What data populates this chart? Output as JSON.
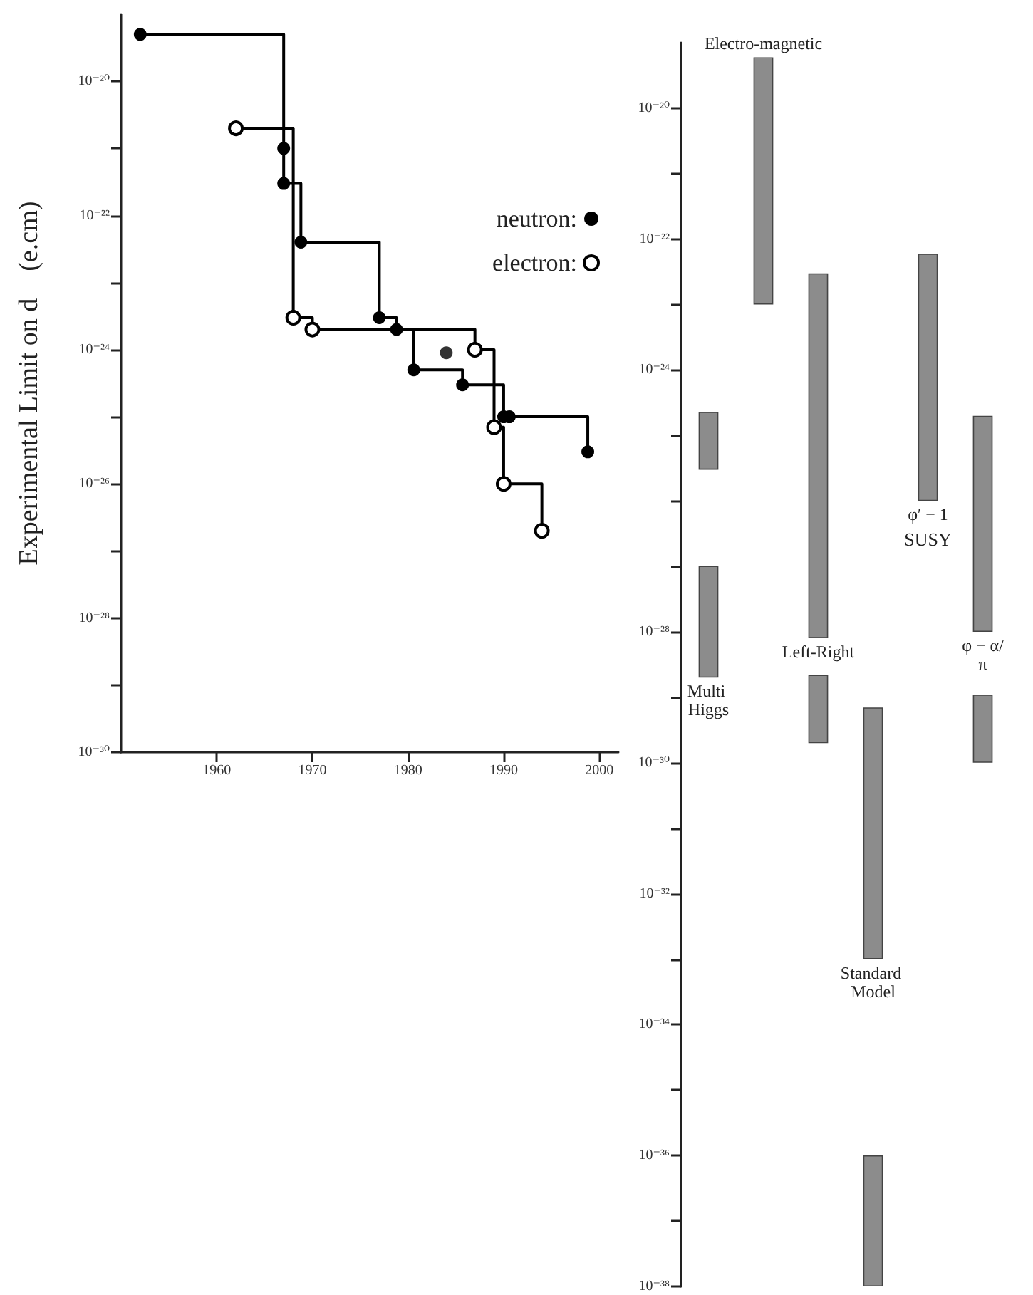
{
  "chart_data": [
    {
      "type": "step",
      "ylabel": "Experimental Limit on d    (e.cm)",
      "series": [
        {
          "name": "neutron:",
          "color": "#000000",
          "x": [
            1952,
            1967,
            1967,
            1968.8,
            1977,
            1978.8,
            1980.6,
            1985.7,
            1990,
            1990.6,
            1998.8
          ],
          "values": [
            5e-20,
            1e-21,
            3e-22,
            4e-23,
            3e-24,
            2e-24,
            5e-25,
            3e-25,
            1e-25,
            1e-25,
            3e-26
          ]
        },
        {
          "name": "electron:",
          "color": "#000000",
          "x": [
            1962,
            1968,
            1970,
            1987,
            1989,
            1990,
            1994
          ],
          "values": [
            2e-21,
            3e-24,
            2e-24,
            1e-24,
            7e-26,
            1e-26,
            2e-27
          ]
        },
        {
          "type": "scatter",
          "color": "#000000",
          "x": [
            1984
          ],
          "values": [
            9e-25
          ]
        }
      ],
      "log": true,
      "xlim": [
        1950,
        2002
      ],
      "xticks": [
        1960,
        1970,
        1980,
        1990,
        2000
      ],
      "ylim": [
        1e-30,
        1e-19
      ],
      "yticks": [
        {
          "value": 1e-20,
          "label": "10⁻²⁰"
        },
        {
          "value": 1e-21,
          "label": null
        },
        {
          "value": 1e-22,
          "label": "10⁻²²"
        },
        {
          "value": 1e-23,
          "label": null
        },
        {
          "value": 1e-24,
          "label": "10⁻²⁴"
        },
        {
          "value": 1e-25,
          "label": null
        },
        {
          "value": 1e-26,
          "label": "10⁻²⁶"
        },
        {
          "value": 1e-27,
          "label": null
        },
        {
          "value": 1e-28,
          "label": "10⁻²⁸"
        },
        {
          "value": 1e-29,
          "label": null
        },
        {
          "value": 1e-30,
          "label": "10⁻³⁰"
        }
      ],
      "grid": false,
      "legend": "right",
      "marker": "circle"
    },
    {
      "type": "bar",
      "categories": [
        "Multi Higgs",
        "Electro-magnetic",
        "Left-Right",
        "Standard Model",
        "φ′ − 1",
        "φ − α/π"
      ],
      "series": [
        {
          "color": "#8c8c8c",
          "base": [
            2e-29,
            1e-23,
            8e-29,
            1e-33,
            1e-26,
            1e-28
          ],
          "values": [
            1e-27,
            6e-20,
            3e-23,
            7e-30,
            6e-23,
            2e-25
          ]
        },
        {
          "color": "#8c8c8c",
          "base": [
            3e-26,
            null,
            2e-30,
            1e-38,
            null,
            1e-30
          ],
          "values": [
            2e-25,
            null,
            2e-29,
            1e-36,
            null,
            1e-29
          ]
        }
      ],
      "log": true,
      "ylim": [
        1e-38,
        1e-19
      ],
      "yticks": [
        {
          "value": 1e-20,
          "label": "10⁻²⁰"
        },
        {
          "value": 1e-21,
          "label": null
        },
        {
          "value": 1e-22,
          "label": "10⁻²²"
        },
        {
          "value": 1e-23,
          "label": null
        },
        {
          "value": 1e-24,
          "label": "10⁻²⁴"
        },
        {
          "value": 1e-25,
          "label": null
        },
        {
          "value": 1e-26,
          "label": null
        },
        {
          "value": 1e-27,
          "label": null
        },
        {
          "value": 1e-28,
          "label": "10⁻²⁸"
        },
        {
          "value": 1e-29,
          "label": null
        },
        {
          "value": 1e-30,
          "label": "10⁻³⁰"
        },
        {
          "value": 1e-31,
          "label": null
        },
        {
          "value": 1e-32,
          "label": "10⁻³²"
        },
        {
          "value": 1e-33,
          "label": null
        },
        {
          "value": 1e-34,
          "label": "10⁻³⁴"
        },
        {
          "value": 1e-35,
          "label": null
        },
        {
          "value": 1e-36,
          "label": "10⁻³⁶"
        },
        {
          "value": 1e-37,
          "label": null
        },
        {
          "value": 1e-38,
          "label": "10⁻³⁸"
        }
      ],
      "tick_labels": "y",
      "annotations": [
        "SUSY"
      ]
    }
  ]
}
